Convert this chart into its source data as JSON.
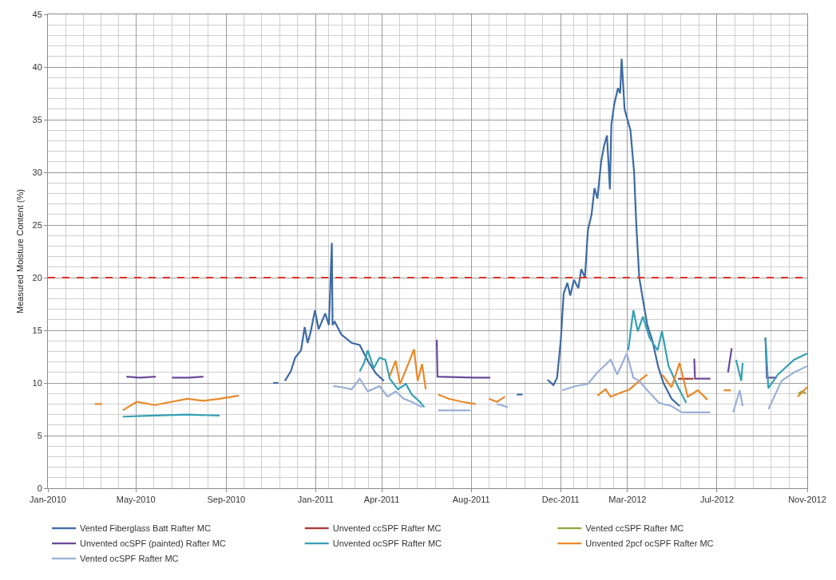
{
  "chart_data": {
    "type": "line",
    "ylabel": "Measured Moisture Content (%)",
    "ylim": [
      0,
      45
    ],
    "yticks": [
      0,
      5,
      10,
      15,
      20,
      25,
      30,
      35,
      40,
      45
    ],
    "xlim": [
      "2010-01-01",
      "2012-11-01"
    ],
    "xticks": [
      {
        "value": "2010-01-01",
        "label": "Jan-2010"
      },
      {
        "value": "2010-05-01",
        "label": "May-2010"
      },
      {
        "value": "2010-09-01",
        "label": "Sep-2010"
      },
      {
        "value": "2011-01-01",
        "label": "Jan-2011"
      },
      {
        "value": "2011-04-01",
        "label": "Apr-2011"
      },
      {
        "value": "2011-08-01",
        "label": "Aug-2011"
      },
      {
        "value": "2011-12-01",
        "label": "Dec-2011"
      },
      {
        "value": "2012-03-01",
        "label": "Mar-2012"
      },
      {
        "value": "2012-07-01",
        "label": "Jul-2012"
      },
      {
        "value": "2012-11-01",
        "label": "Nov-2012"
      }
    ],
    "grid": true,
    "legend": "bottom",
    "marker": "none",
    "line_style": "solid",
    "ref_lines": [
      {
        "axis": "y",
        "value": 20,
        "color": "#e0302a",
        "line_style": "dashed"
      }
    ],
    "series": [
      {
        "name": "Vented Fiberglass Batt Rafter MC",
        "color": "#3d6aa5",
        "x": [
          "2010-11-04",
          "2010-11-11",
          "2010-11-14",
          "2010-11-20",
          "2010-11-28",
          "2010-12-04",
          "2010-12-12",
          "2010-12-17",
          "2010-12-21",
          "2010-12-25",
          "2010-12-31",
          "2011-01-05",
          "2011-01-14",
          "2011-01-19",
          "2011-01-23",
          "2011-01-24",
          "2011-01-27",
          "2011-02-05",
          "2011-02-19",
          "2011-03-02",
          "2011-03-13",
          "2011-03-24",
          "2011-04-04",
          "2011-06-01",
          "2011-10-02",
          "2011-10-10",
          "2011-11-01",
          "2011-11-13",
          "2011-11-21",
          "2011-11-26",
          "2011-12-01",
          "2011-12-05",
          "2011-12-10",
          "2011-12-14",
          "2011-12-19",
          "2011-12-25",
          "2011-12-29",
          "2012-01-03",
          "2012-01-07",
          "2012-01-12",
          "2012-01-16",
          "2012-01-20",
          "2012-01-25",
          "2012-01-29",
          "2012-02-02",
          "2012-02-06",
          "2012-02-08",
          "2012-02-12",
          "2012-02-17",
          "2012-02-20",
          "2012-02-22",
          "2012-02-26",
          "2012-03-01",
          "2012-03-05",
          "2012-03-10",
          "2012-03-13",
          "2012-03-17",
          "2012-03-23",
          "2012-03-28",
          "2012-04-04",
          "2012-04-12",
          "2012-04-19",
          "2012-04-30",
          "2012-05-11"
        ],
        "values": [
          10.0,
          10.0,
          null,
          10.2,
          11.1,
          12.4,
          13.1,
          15.3,
          13.8,
          14.8,
          16.9,
          15.1,
          16.6,
          15.5,
          23.3,
          15.5,
          15.8,
          14.6,
          13.8,
          13.6,
          12.1,
          10.9,
          10.2,
          null,
          8.9,
          8.9,
          null,
          10.3,
          9.8,
          10.5,
          14.0,
          18.5,
          19.5,
          18.3,
          19.8,
          19.0,
          20.8,
          20.0,
          24.5,
          26.0,
          28.5,
          27.5,
          31.0,
          32.5,
          33.5,
          28.4,
          34.5,
          36.5,
          38.0,
          37.5,
          40.8,
          36.0,
          35.0,
          34.0,
          30.0,
          25.0,
          20.0,
          17.5,
          15.5,
          14.0,
          11.5,
          10.0,
          8.5,
          7.8
        ]
      },
      {
        "name": "Unvented ccSPF Rafter MC",
        "color": "#a63a35",
        "x": [
          "2012-05-09",
          "2012-05-20",
          "2012-05-30"
        ],
        "values": [
          10.4,
          10.4,
          10.4
        ]
      },
      {
        "name": "Vented ccSPF Rafter MC",
        "color": "#8fa83f",
        "x": [
          "2012-10-20",
          "2012-10-25",
          "2012-10-30"
        ],
        "values": [
          9.0,
          9.2,
          9.0
        ]
      },
      {
        "name": "Unvented ocSPF (painted) Rafter MC",
        "color": "#6a4a9b",
        "x": [
          "2010-04-18",
          "2010-05-06",
          "2010-05-28",
          "2010-06-08",
          "2010-06-19",
          "2010-07-11",
          "2010-08-01",
          "2011-06-01",
          "2011-06-15",
          "2011-06-16",
          "2011-08-07",
          "2011-08-27",
          "2012-05-01",
          "2012-05-31",
          "2012-06-01",
          "2012-06-22",
          "2012-07-01",
          "2012-07-16",
          "2012-07-21",
          "2012-08-20",
          "2012-09-05",
          "2012-09-07",
          "2012-09-20"
        ],
        "values": [
          10.6,
          10.5,
          10.6,
          null,
          10.5,
          10.5,
          10.6,
          null,
          14.1,
          10.6,
          10.5,
          10.5,
          null,
          12.3,
          10.4,
          10.4,
          null,
          11.0,
          13.3,
          null,
          14.3,
          10.5,
          10.5
        ]
      },
      {
        "name": "Unvented ocSPF Rafter MC",
        "color": "#35a0b4",
        "x": [
          "2010-04-13",
          "2010-05-27",
          "2010-07-10",
          "2010-08-23",
          "2010-10-01",
          "2011-03-02",
          "2011-03-08",
          "2011-03-13",
          "2011-03-21",
          "2011-03-29",
          "2011-04-06",
          "2011-04-12",
          "2011-04-23",
          "2011-05-04",
          "2011-05-12",
          "2011-05-23",
          "2011-05-29",
          "2011-12-01",
          "2012-03-02",
          "2012-03-09",
          "2012-03-15",
          "2012-03-22",
          "2012-03-31",
          "2012-04-11",
          "2012-04-17",
          "2012-04-26",
          "2012-05-09",
          "2012-05-20",
          "2012-07-01",
          "2012-07-27",
          "2012-08-03",
          "2012-08-05",
          "2012-08-20",
          "2012-09-05",
          "2012-09-09",
          "2012-09-22",
          "2012-10-14",
          "2012-11-01"
        ],
        "values": [
          6.8,
          6.9,
          7.0,
          6.9,
          null,
          11.1,
          11.9,
          13.1,
          11.4,
          12.4,
          12.2,
          10.4,
          9.4,
          9.9,
          8.9,
          8.2,
          7.7,
          null,
          13.1,
          16.9,
          14.9,
          16.3,
          14.3,
          13.1,
          14.9,
          11.6,
          9.6,
          8.1,
          null,
          12.2,
          10.2,
          11.9,
          null,
          14.3,
          9.5,
          10.8,
          12.2,
          12.8
        ]
      },
      {
        "name": "Unvented 2pcf ocSPF Rafter MC",
        "color": "#e8892b",
        "x": [
          "2010-03-06",
          "2010-03-16",
          "2010-03-30",
          "2010-04-13",
          "2010-05-02",
          "2010-05-27",
          "2010-06-18",
          "2010-07-10",
          "2010-08-01",
          "2010-08-23",
          "2010-09-18",
          "2010-12-01",
          "2011-04-12",
          "2011-04-20",
          "2011-04-26",
          "2011-05-06",
          "2011-05-15",
          "2011-05-20",
          "2011-05-26",
          "2011-05-31",
          "2011-06-10",
          "2011-06-17",
          "2011-07-01",
          "2011-07-20",
          "2011-08-07",
          "2011-08-16",
          "2011-08-25",
          "2011-09-05",
          "2011-09-16",
          "2011-12-01",
          "2012-01-20",
          "2012-01-31",
          "2012-02-07",
          "2012-02-18",
          "2012-03-04",
          "2012-03-17",
          "2012-03-28",
          "2012-04-07",
          "2012-04-17",
          "2012-04-30",
          "2012-05-11",
          "2012-05-22",
          "2012-06-05",
          "2012-06-18",
          "2012-07-01",
          "2012-07-10",
          "2012-07-20",
          "2012-10-01",
          "2012-10-19",
          "2012-11-01"
        ],
        "values": [
          8.0,
          8.0,
          null,
          7.4,
          8.2,
          7.9,
          8.2,
          8.5,
          8.3,
          8.5,
          8.8,
          null,
          10.7,
          12.1,
          9.9,
          11.6,
          13.2,
          10.2,
          11.8,
          9.4,
          null,
          8.9,
          8.5,
          8.2,
          8.0,
          null,
          8.5,
          8.2,
          8.7,
          null,
          8.8,
          9.4,
          8.7,
          9.0,
          9.4,
          10.2,
          10.8,
          null,
          10.8,
          9.6,
          11.9,
          8.7,
          9.3,
          8.4,
          null,
          9.3,
          9.3,
          null,
          8.7,
          9.6
        ]
      },
      {
        "name": "Vented ocSPF Rafter MC",
        "color": "#9bb0d8",
        "x": [
          "2011-01-25",
          "2011-02-05",
          "2011-02-19",
          "2011-03-02",
          "2011-03-13",
          "2011-03-29",
          "2011-04-09",
          "2011-04-20",
          "2011-05-01",
          "2011-05-12",
          "2011-05-26",
          "2011-06-05",
          "2011-06-17",
          "2011-07-31",
          "2011-08-20",
          "2011-09-05",
          "2011-09-20",
          "2011-11-01",
          "2011-12-03",
          "2011-12-21",
          "2012-01-07",
          "2012-01-20",
          "2012-02-07",
          "2012-02-16",
          "2012-02-29",
          "2012-03-09",
          "2012-03-17",
          "2012-03-28",
          "2012-04-13",
          "2012-04-30",
          "2012-05-14",
          "2012-06-22",
          "2012-07-10",
          "2012-07-23",
          "2012-08-01",
          "2012-08-05",
          "2012-08-25",
          "2012-09-09",
          "2012-09-27",
          "2012-10-14",
          "2012-11-01"
        ],
        "values": [
          9.7,
          9.6,
          9.4,
          10.4,
          9.2,
          9.7,
          8.7,
          9.2,
          8.5,
          8.2,
          7.7,
          null,
          7.4,
          7.4,
          null,
          8.0,
          7.7,
          null,
          9.3,
          9.7,
          9.9,
          11.0,
          12.2,
          10.8,
          12.8,
          10.5,
          10.2,
          9.3,
          8.1,
          7.8,
          7.2,
          7.2,
          null,
          7.2,
          9.3,
          7.8,
          null,
          7.5,
          10.2,
          11.0,
          11.6
        ]
      }
    ]
  }
}
